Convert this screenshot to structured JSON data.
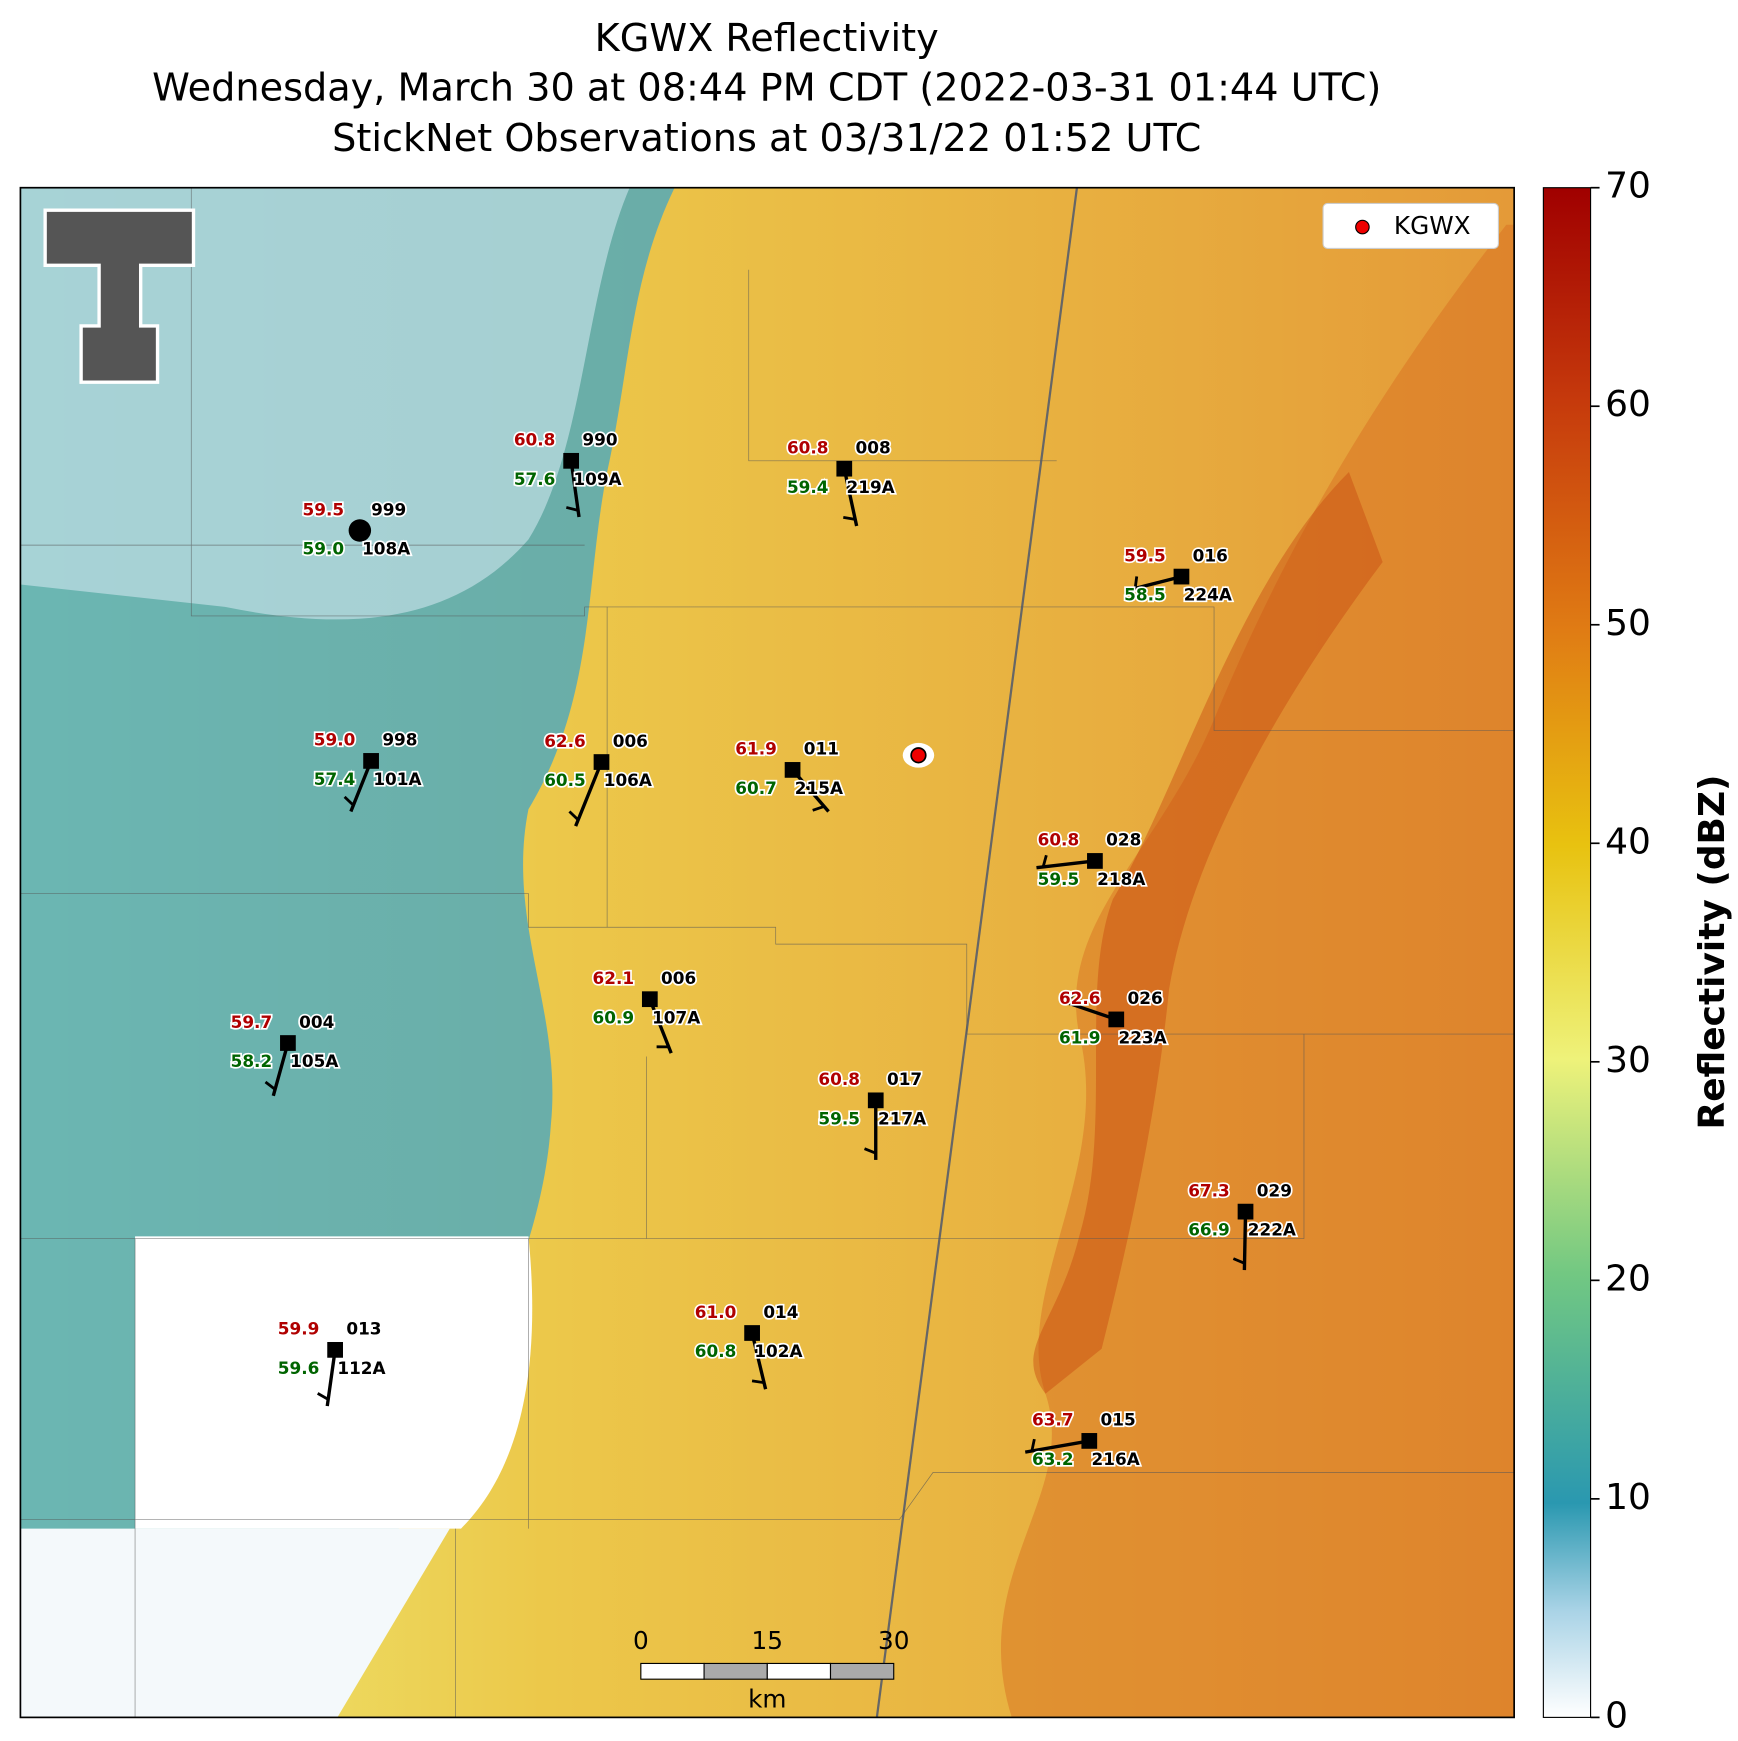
{
  "header": {
    "title": "KGWX Reflectivity",
    "subtitle": "Wednesday, March 30 at 08:44 PM CDT (2022-03-31 01:44 UTC)",
    "observations": "StickNet Observations at 03/31/22 01:52 UTC"
  },
  "map": {
    "legend": "KGWX",
    "scale_bar": {
      "ticks": [
        0,
        15,
        30
      ],
      "unit": "km"
    },
    "stations": [
      {
        "temperature": "60.8",
        "dewpoint": "57.6",
        "probe": "990",
        "station": "109A"
      },
      {
        "temperature": "60.8",
        "dewpoint": "59.4",
        "probe": "008",
        "station": "219A"
      },
      {
        "temperature": "59.5",
        "dewpoint": "59.0",
        "probe": "999",
        "station": "108A"
      },
      {
        "temperature": "59.5",
        "dewpoint": "58.5",
        "probe": "016",
        "station": "224A"
      },
      {
        "temperature": "59.0",
        "dewpoint": "57.4",
        "probe": "998",
        "station": "101A"
      },
      {
        "temperature": "62.6",
        "dewpoint": "60.5",
        "probe": "006",
        "station": "106A"
      },
      {
        "temperature": "61.9",
        "dewpoint": "60.7",
        "probe": "011",
        "station": "215A"
      },
      {
        "temperature": "60.8",
        "dewpoint": "59.5",
        "probe": "028",
        "station": "218A"
      },
      {
        "temperature": "62.1",
        "dewpoint": "60.9",
        "probe": "006",
        "station": "107A"
      },
      {
        "temperature": "62.6",
        "dewpoint": "61.9",
        "probe": "026",
        "station": "223A"
      },
      {
        "temperature": "59.7",
        "dewpoint": "58.2",
        "probe": "004",
        "station": "105A"
      },
      {
        "temperature": "60.8",
        "dewpoint": "59.5",
        "probe": "017",
        "station": "217A"
      },
      {
        "temperature": "67.3",
        "dewpoint": "66.9",
        "probe": "029",
        "station": "222A"
      },
      {
        "temperature": "61.0",
        "dewpoint": "60.8",
        "probe": "014",
        "station": "102A"
      },
      {
        "temperature": "59.9",
        "dewpoint": "59.6",
        "probe": "013",
        "station": "112A"
      },
      {
        "temperature": "63.7",
        "dewpoint": "63.2",
        "probe": "015",
        "station": "216A"
      }
    ]
  },
  "colorbar": {
    "label": "Reflectivity (dBZ)",
    "lim": [
      0,
      70
    ],
    "ticks": [
      0,
      10,
      20,
      30,
      40,
      50,
      60,
      70
    ]
  }
}
